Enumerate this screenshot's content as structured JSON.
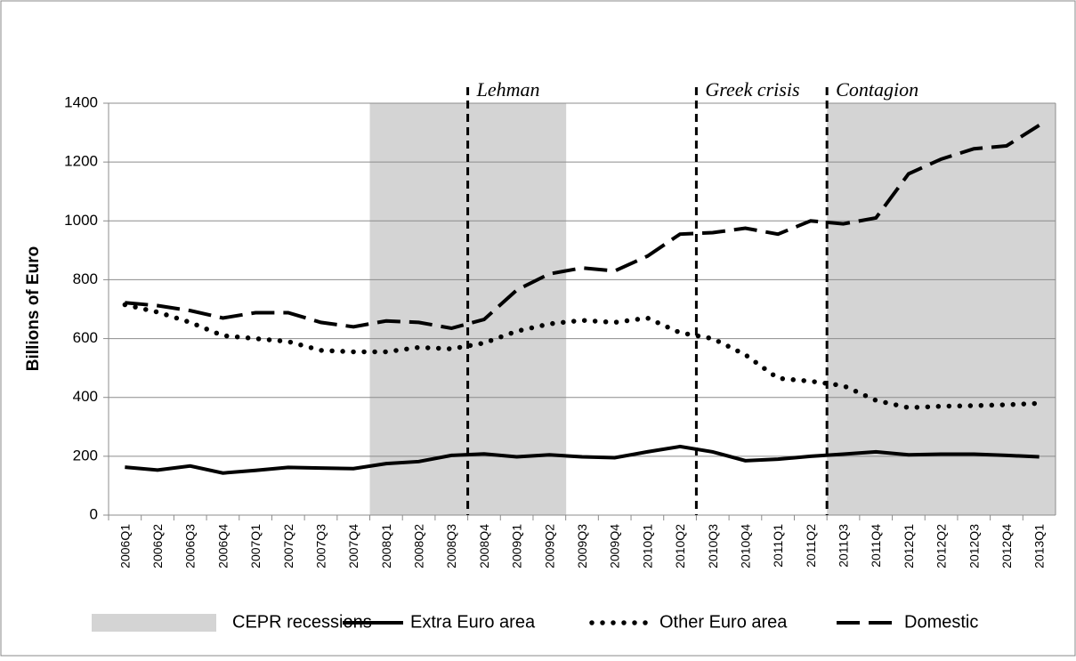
{
  "chart_data": {
    "type": "line",
    "y_label": "Billions of Euro",
    "categories": [
      "2006Q1",
      "2006Q2",
      "2006Q3",
      "2006Q4",
      "2007Q1",
      "2007Q2",
      "2007Q3",
      "2007Q4",
      "2008Q1",
      "2008Q2",
      "2008Q3",
      "2008Q4",
      "2009Q1",
      "2009Q2",
      "2009Q3",
      "2009Q4",
      "2010Q1",
      "2010Q2",
      "2010Q3",
      "2010Q4",
      "2011Q1",
      "2011Q2",
      "2011Q3",
      "2011Q4",
      "2012Q1",
      "2012Q2",
      "2012Q3",
      "2012Q4",
      "2013Q1"
    ],
    "series": [
      {
        "name": "CEPR recessions",
        "style": "band",
        "color": "#d4d4d4",
        "values": [
          null,
          null,
          null,
          null,
          null,
          null,
          null,
          null,
          1400,
          1400,
          1400,
          1400,
          1400,
          1400,
          null,
          null,
          null,
          null,
          null,
          null,
          null,
          null,
          1400,
          1400,
          1400,
          1400,
          1400,
          1400,
          1400
        ]
      },
      {
        "name": "Extra Euro area",
        "style": "solid",
        "color": "#000000",
        "values": [
          163,
          153,
          167,
          143,
          152,
          162,
          160,
          158,
          175,
          182,
          203,
          208,
          198,
          205,
          198,
          195,
          215,
          233,
          215,
          185,
          190,
          200,
          207,
          215,
          205,
          207,
          207,
          203,
          198
        ]
      },
      {
        "name": "Other Euro area",
        "style": "dotted",
        "color": "#000000",
        "values": [
          715,
          690,
          655,
          610,
          600,
          590,
          560,
          555,
          555,
          570,
          565,
          585,
          625,
          650,
          662,
          655,
          670,
          620,
          600,
          545,
          465,
          455,
          440,
          390,
          365,
          370,
          372,
          375,
          380
        ]
      },
      {
        "name": "Domestic",
        "style": "dashed",
        "color": "#000000",
        "values": [
          722,
          712,
          695,
          670,
          688,
          688,
          655,
          640,
          660,
          655,
          635,
          665,
          765,
          820,
          840,
          830,
          880,
          955,
          960,
          975,
          955,
          1000,
          990,
          1010,
          1160,
          1210,
          1245,
          1255,
          1325
        ]
      }
    ],
    "events": [
      {
        "category": "2008Q4",
        "label": "Lehman"
      },
      {
        "category": "2010Q3",
        "label": "Greek crisis"
      },
      {
        "category": "2011Q3",
        "label": "Contagion"
      }
    ],
    "ylim": [
      0,
      1400
    ],
    "yticks": [
      0,
      200,
      400,
      600,
      800,
      1000,
      1200,
      1400
    ],
    "grid": true
  }
}
